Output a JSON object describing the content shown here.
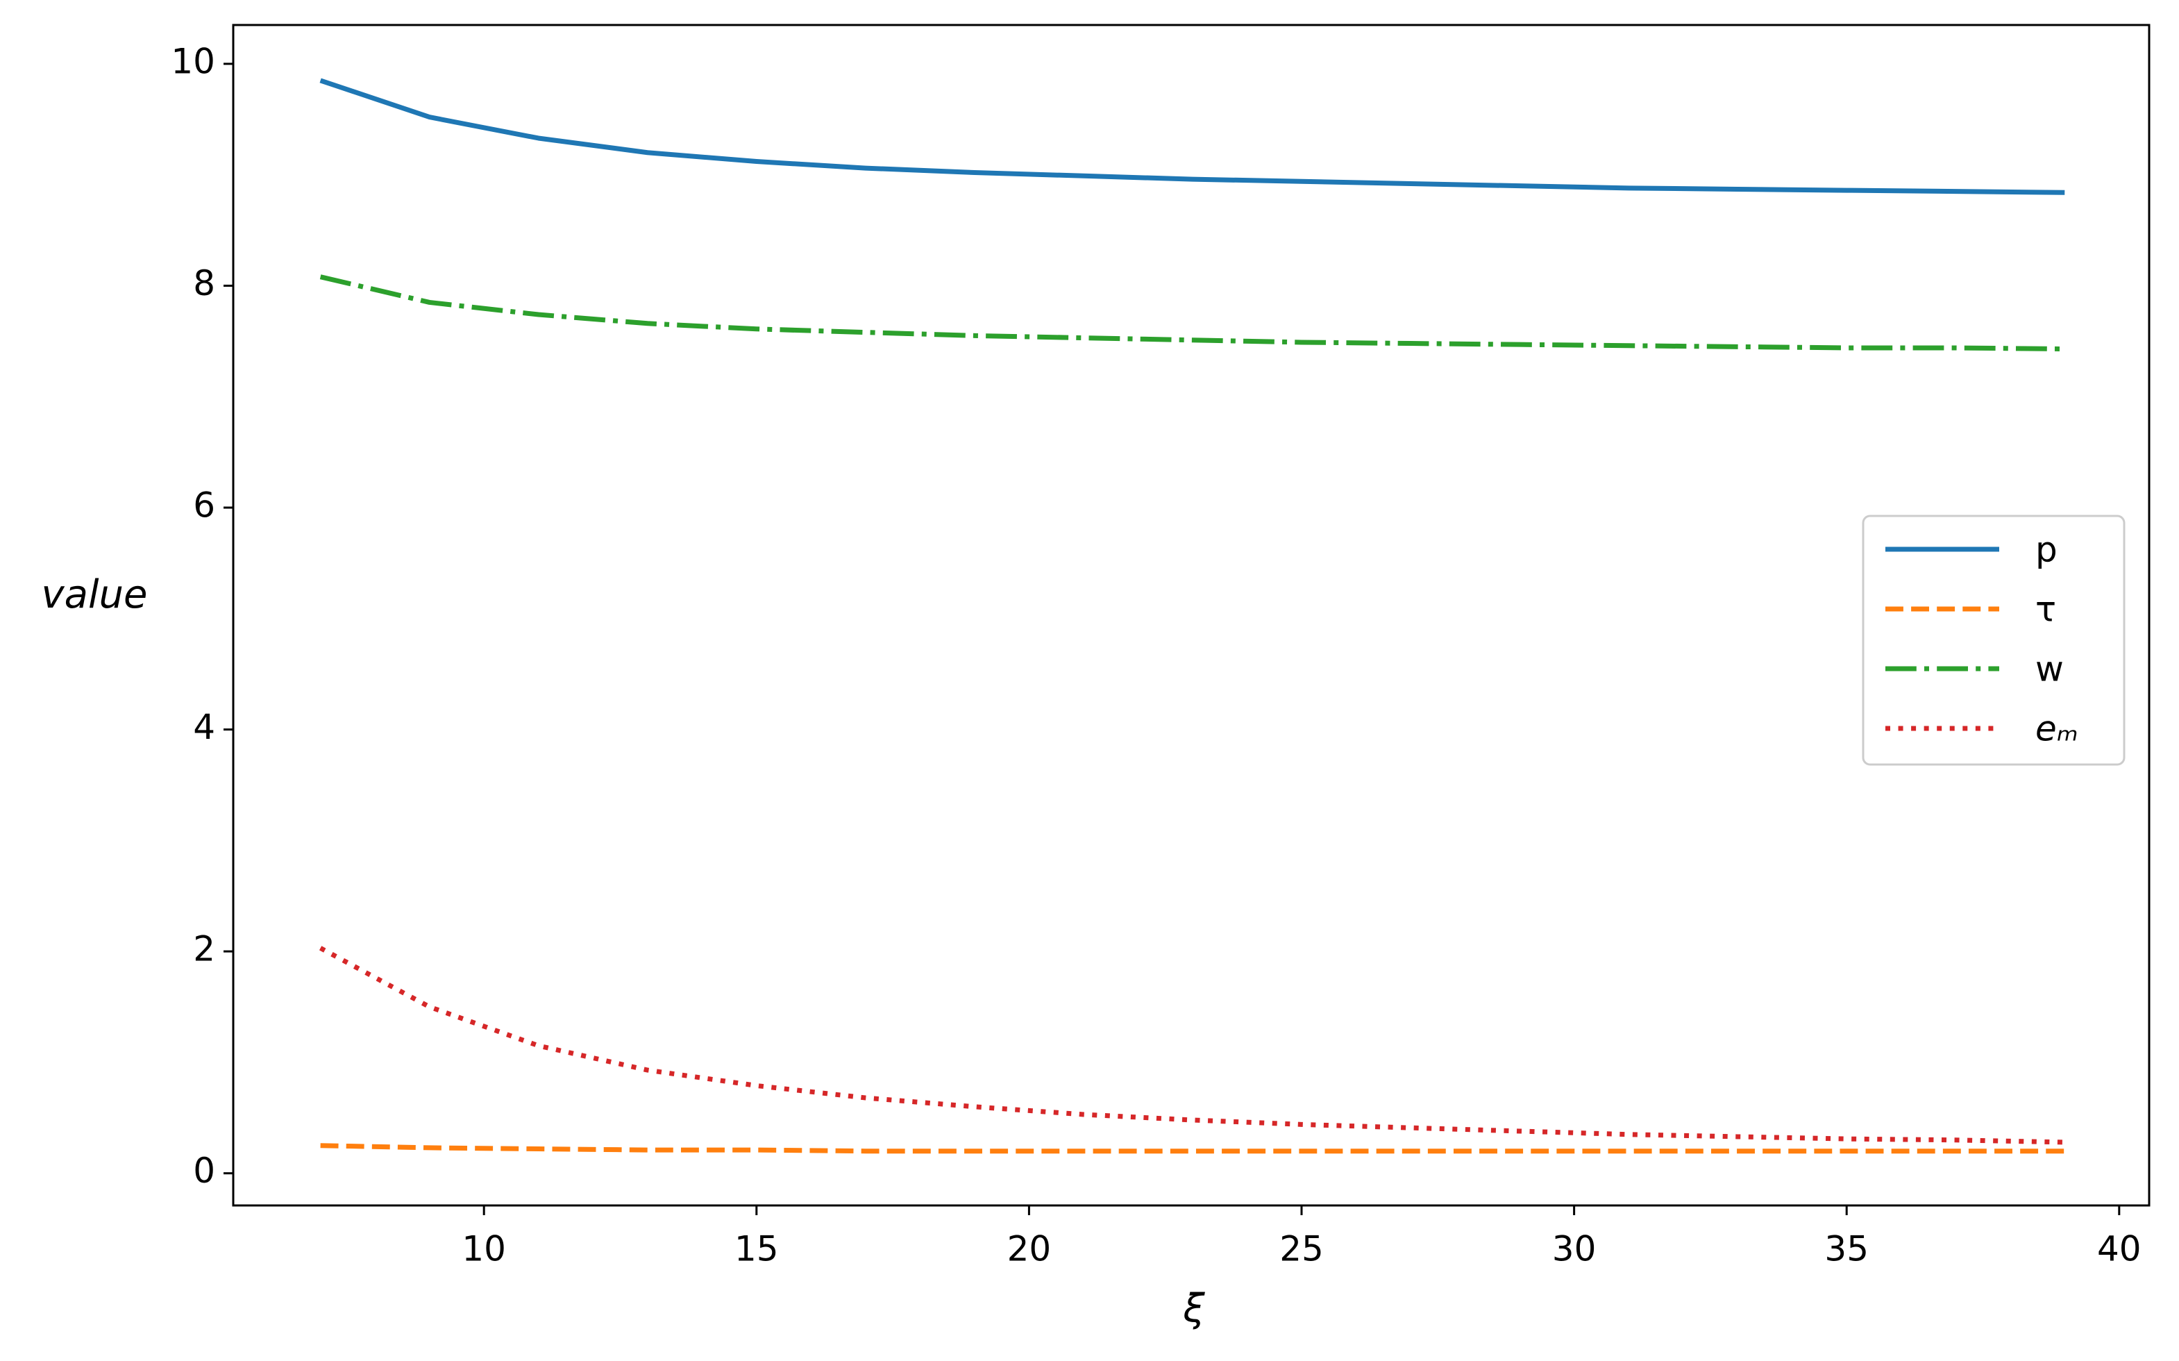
{
  "chart_data": {
    "type": "line",
    "x_label": "ξ",
    "y_label": "value",
    "x": [
      7,
      9,
      11,
      13,
      15,
      17,
      19,
      21,
      23,
      25,
      27,
      29,
      31,
      33,
      35,
      37,
      39
    ],
    "series": [
      {
        "name": "p",
        "color": "#1f77b4",
        "linestyle": "solid",
        "values": [
          9.85,
          9.52,
          9.33,
          9.2,
          9.12,
          9.06,
          9.02,
          8.99,
          8.96,
          8.94,
          8.92,
          8.9,
          8.88,
          8.87,
          8.86,
          8.85,
          8.84
        ]
      },
      {
        "name": "τ",
        "color": "#ff7f0e",
        "linestyle": "dashed",
        "values": [
          0.25,
          0.23,
          0.22,
          0.21,
          0.21,
          0.2,
          0.2,
          0.2,
          0.2,
          0.2,
          0.2,
          0.2,
          0.2,
          0.2,
          0.2,
          0.2,
          0.2
        ]
      },
      {
        "name": "w",
        "color": "#2ca02c",
        "linestyle": "dashdot",
        "values": [
          8.08,
          7.85,
          7.74,
          7.66,
          7.61,
          7.58,
          7.55,
          7.53,
          7.51,
          7.49,
          7.48,
          7.47,
          7.46,
          7.45,
          7.44,
          7.44,
          7.43
        ]
      },
      {
        "name": "eₘ",
        "color": "#d62728",
        "linestyle": "dotted",
        "values": [
          2.03,
          1.5,
          1.15,
          0.93,
          0.79,
          0.68,
          0.6,
          0.53,
          0.48,
          0.44,
          0.41,
          0.38,
          0.35,
          0.33,
          0.31,
          0.3,
          0.28
        ]
      }
    ],
    "xlim": [
      5.4,
      40.55
    ],
    "xticks": [
      10,
      15,
      20,
      25,
      30,
      35,
      40
    ],
    "ylim": [
      -0.29,
      10.35
    ],
    "yticks": [
      0,
      2,
      4,
      6,
      8,
      10
    ],
    "grid": false,
    "legend": "center right"
  }
}
